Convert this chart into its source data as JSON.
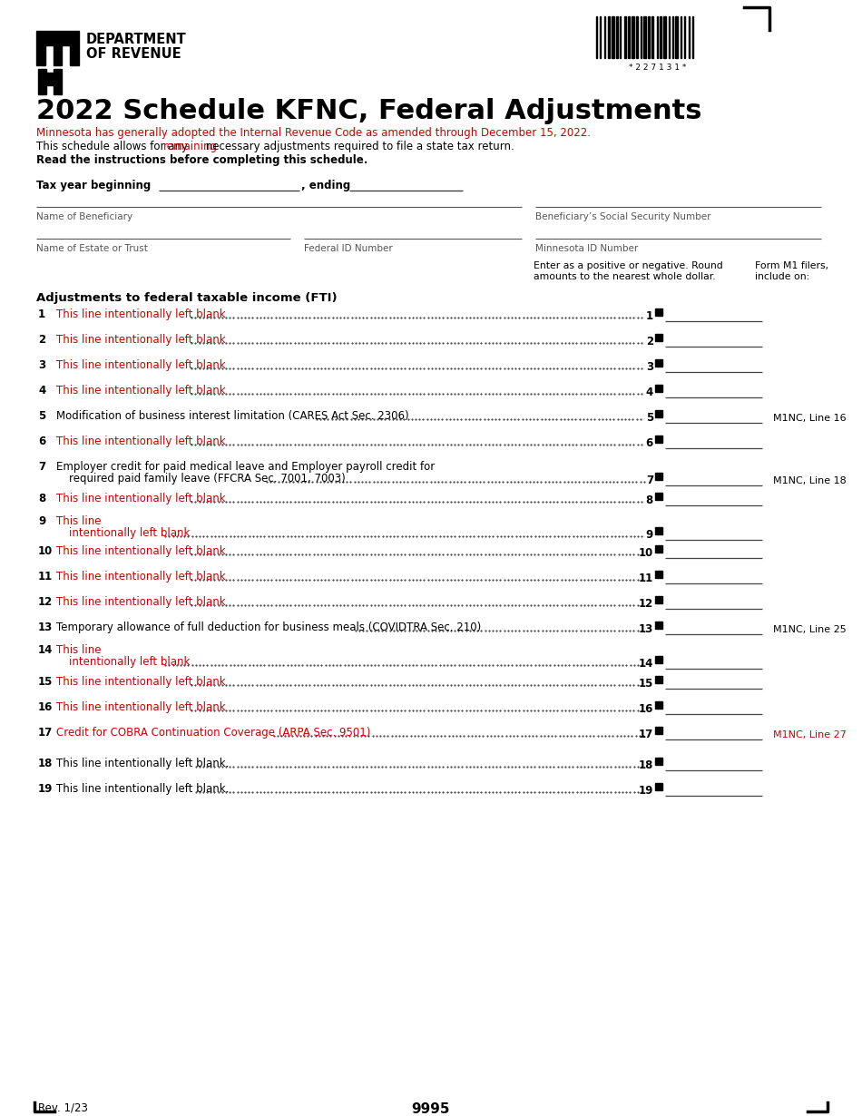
{
  "title": "2022 Schedule KFNC, Federal Adjustments",
  "red_line1": "Minnesota has generally adopted the Internal Revenue Code as amended through December 15, 2022.",
  "black_line2_start": "This schedule allows for any ",
  "black_line2_remaining": " necessary adjustments required to file a state tax return.",
  "remaining_word": "remaining",
  "bold_note": "Read the instructions before completing this schedule.",
  "tax_year_label_1": "Tax year beginning ",
  "tax_year_label_2": ", ending ",
  "name_beneficiary": "Name of Beneficiary",
  "ssn_label": "Beneficiary’s Social Security Number",
  "name_estate": "Name of Estate or Trust",
  "federal_id": "Federal ID Number",
  "mn_id": "Minnesota ID Number",
  "col_header1": "Enter as a positive or negative. Round\namounts to the nearest whole dollar.",
  "col_header2": "Form M1 filers,\ninclude on:",
  "section_header": "Adjustments to federal taxable income (FTI)",
  "dept_name1": "DEPARTMENT",
  "dept_name2": "OF REVENUE",
  "barcode_text": "* 2 2 7 1 3 1 *",
  "footer_rev": "Rev. 1/23",
  "footer_page": "9995",
  "background_color": "#ffffff",
  "text_color": "#000000",
  "red_color": "#cc0000",
  "gray_color": "#777777",
  "lines": [
    {
      "num": 1,
      "text": "This line intentionally left blank",
      "color": "red",
      "multiline": false,
      "m1nc": "",
      "m1nc_color": "black"
    },
    {
      "num": 2,
      "text": "This line intentionally left blank",
      "color": "red",
      "multiline": false,
      "m1nc": "",
      "m1nc_color": "black"
    },
    {
      "num": 3,
      "text": "This line intentionally left blank",
      "color": "red",
      "multiline": false,
      "m1nc": "",
      "m1nc_color": "black"
    },
    {
      "num": 4,
      "text": "This line intentionally left blank",
      "color": "red",
      "multiline": false,
      "m1nc": "",
      "m1nc_color": "black"
    },
    {
      "num": 5,
      "text": "Modification of business interest limitation (CARES Act Sec. 2306)",
      "color": "black",
      "multiline": false,
      "m1nc": "M1NC, Line 16",
      "m1nc_color": "black"
    },
    {
      "num": 6,
      "text": "This line intentionally left blank",
      "color": "red",
      "multiline": false,
      "m1nc": "",
      "m1nc_color": "black"
    },
    {
      "num": 7,
      "text": "Employer credit for paid medical leave and Employer payroll credit for",
      "text2": "required paid family leave (FFCRA Sec. 7001, 7003)",
      "color": "black",
      "multiline": true,
      "m1nc": "M1NC, Line 18",
      "m1nc_color": "black"
    },
    {
      "num": 8,
      "text": "This line intentionally left blank",
      "color": "red",
      "multiline": false,
      "m1nc": "",
      "m1nc_color": "black"
    },
    {
      "num": 9,
      "text": "This line",
      "text2": "intentionally left blank",
      "color": "red",
      "multiline": true,
      "m1nc": "",
      "m1nc_color": "black"
    },
    {
      "num": 10,
      "text": "This line intentionally left blank",
      "color": "red",
      "multiline": false,
      "m1nc": "",
      "m1nc_color": "black"
    },
    {
      "num": 11,
      "text": "This line intentionally left blank",
      "color": "red",
      "multiline": false,
      "m1nc": "",
      "m1nc_color": "black"
    },
    {
      "num": 12,
      "text": "This line intentionally left blank",
      "color": "red",
      "multiline": false,
      "m1nc": "",
      "m1nc_color": "black"
    },
    {
      "num": 13,
      "text": "Temporary allowance of full deduction for business meals (COVIDTRA Sec. 210)",
      "color": "black",
      "multiline": false,
      "m1nc": "M1NC, Line 25",
      "m1nc_color": "black"
    },
    {
      "num": 14,
      "text": "This line",
      "text2": "intentionally left blank",
      "color": "red",
      "multiline": true,
      "m1nc": "",
      "m1nc_color": "black"
    },
    {
      "num": 15,
      "text": "This line intentionally left blank",
      "color": "red",
      "multiline": false,
      "m1nc": "",
      "m1nc_color": "black"
    },
    {
      "num": 16,
      "text": "This line intentionally left blank",
      "color": "red",
      "multiline": false,
      "m1nc": "",
      "m1nc_color": "black"
    },
    {
      "num": 17,
      "text": "Credit for COBRA Continuation Coverage (ARPA Sec. 9501)",
      "color": "red",
      "multiline": false,
      "m1nc": "M1NC, Line 27",
      "m1nc_color": "red"
    },
    {
      "num": 18,
      "text": "This line intentionally left blank.",
      "color": "black",
      "multiline": false,
      "m1nc": "",
      "m1nc_color": "black"
    },
    {
      "num": 19,
      "text": "This line intentionally left blank.",
      "color": "black",
      "multiline": false,
      "m1nc": "",
      "m1nc_color": "black"
    }
  ]
}
